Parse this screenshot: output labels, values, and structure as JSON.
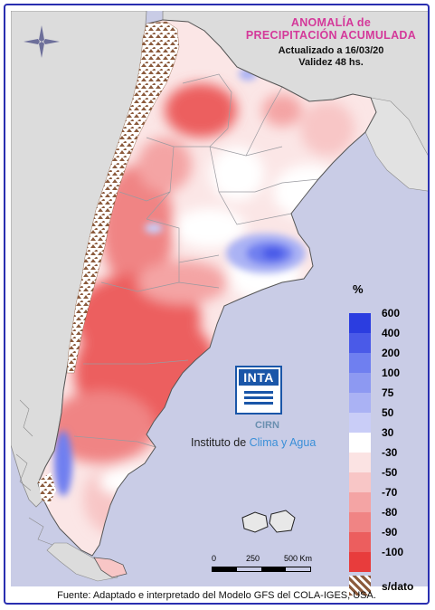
{
  "title": {
    "line1": "ANOMALÍA de",
    "line2": "PRECIPITACIÓN ACUMULADA"
  },
  "subtitle": {
    "updated": "Actualizado a 16/03/20",
    "validity": "Validez 48 hs."
  },
  "legend": {
    "unit": "%",
    "items": [
      {
        "label": "600",
        "color": "#2b3de0"
      },
      {
        "label": "400",
        "color": "#4a5ae8"
      },
      {
        "label": "200",
        "color": "#6f7ff0"
      },
      {
        "label": "100",
        "color": "#8d99f2"
      },
      {
        "label": "75",
        "color": "#aab2f4"
      },
      {
        "label": "50",
        "color": "#c9cdf7"
      },
      {
        "label": "30",
        "color": "#ffffff"
      },
      {
        "label": "-30",
        "color": "#fbe3e3"
      },
      {
        "label": "-50",
        "color": "#f8c6c6"
      },
      {
        "label": "-70",
        "color": "#f4a4a4"
      },
      {
        "label": "-80",
        "color": "#f08484"
      },
      {
        "label": "-90",
        "color": "#ec5e5e"
      },
      {
        "label": "-100",
        "color": "#e83c3c"
      },
      {
        "label": "s/dato",
        "color": "#8b5a3c"
      }
    ]
  },
  "logo": {
    "inta": "INTA",
    "cirn": "CIRN",
    "institute_prefix": "Instituto de ",
    "institute_highlight": "Clima y Agua"
  },
  "scale": {
    "ticks": [
      "0",
      "250",
      "500 Km"
    ]
  },
  "footer": "Fuente: Adaptado e interpretado del Modelo GFS del COLA-IGES, USA.",
  "colors": {
    "sea": "#c9cce6",
    "land_neighbor": "#d6d6d6",
    "border": "#2a2fb0",
    "title": "#d4399a"
  }
}
